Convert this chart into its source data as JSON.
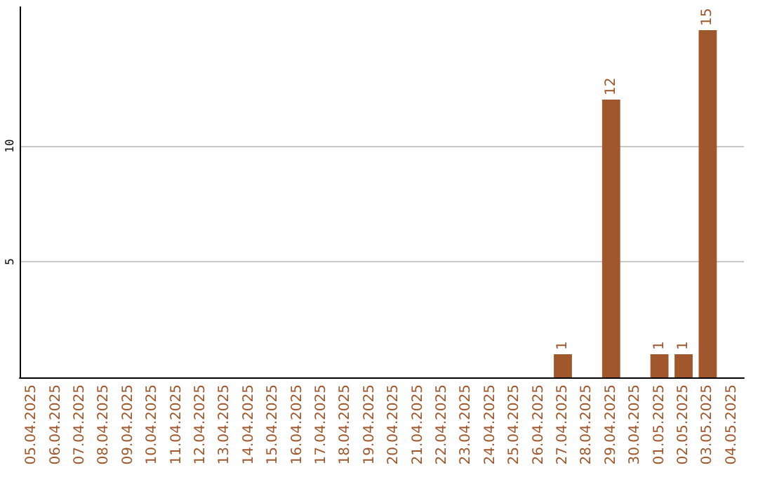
{
  "chart_data": {
    "type": "bar",
    "categories": [
      "05.04.2025",
      "06.04.2025",
      "07.04.2025",
      "08.04.2025",
      "09.04.2025",
      "10.04.2025",
      "11.04.2025",
      "12.04.2025",
      "13.04.2025",
      "14.04.2025",
      "15.04.2025",
      "16.04.2025",
      "17.04.2025",
      "18.04.2025",
      "19.04.2025",
      "20.04.2025",
      "21.04.2025",
      "22.04.2025",
      "23.04.2025",
      "24.04.2025",
      "25.04.2025",
      "26.04.2025",
      "27.04.2025",
      "28.04.2025",
      "29.04.2025",
      "30.04.2025",
      "01.05.2025",
      "02.05.2025",
      "03.05.2025",
      "04.05.2025"
    ],
    "values": [
      0,
      0,
      0,
      0,
      0,
      0,
      0,
      0,
      0,
      0,
      0,
      0,
      0,
      0,
      0,
      0,
      0,
      0,
      0,
      0,
      0,
      0,
      1,
      0,
      12,
      0,
      1,
      1,
      15,
      0
    ],
    "value_labels": [
      null,
      null,
      null,
      null,
      null,
      null,
      null,
      null,
      null,
      null,
      null,
      null,
      null,
      null,
      null,
      null,
      null,
      null,
      null,
      null,
      null,
      null,
      "1",
      null,
      "12",
      null,
      "1",
      "1",
      "15",
      null
    ],
    "color": "#a0572b",
    "ylim": [
      0,
      16
    ],
    "yticks": [
      5,
      10
    ],
    "grid": "y"
  }
}
